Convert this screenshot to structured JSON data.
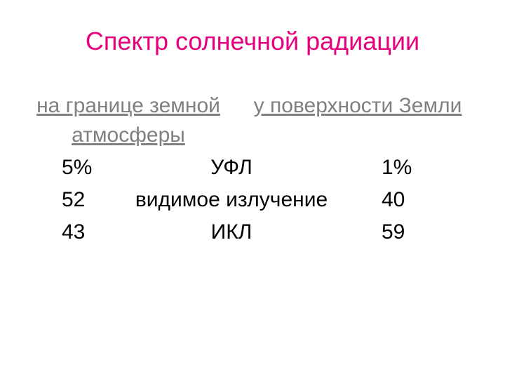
{
  "title": {
    "text": "Спектр солнечной радиации",
    "color": "#e6007e"
  },
  "subheads": {
    "left": "на границе земной атмосферы",
    "right": "у поверхности Земли",
    "color": "#808080"
  },
  "body": {
    "color": "#000000"
  },
  "rows": [
    {
      "left": "5%",
      "mid": "УФЛ",
      "right": "1%"
    },
    {
      "left": "52",
      "mid": "видимое излучение",
      "right": "40"
    },
    {
      "left": "43",
      "mid": "ИКЛ",
      "right": "59"
    }
  ],
  "background_color": "#ffffff"
}
